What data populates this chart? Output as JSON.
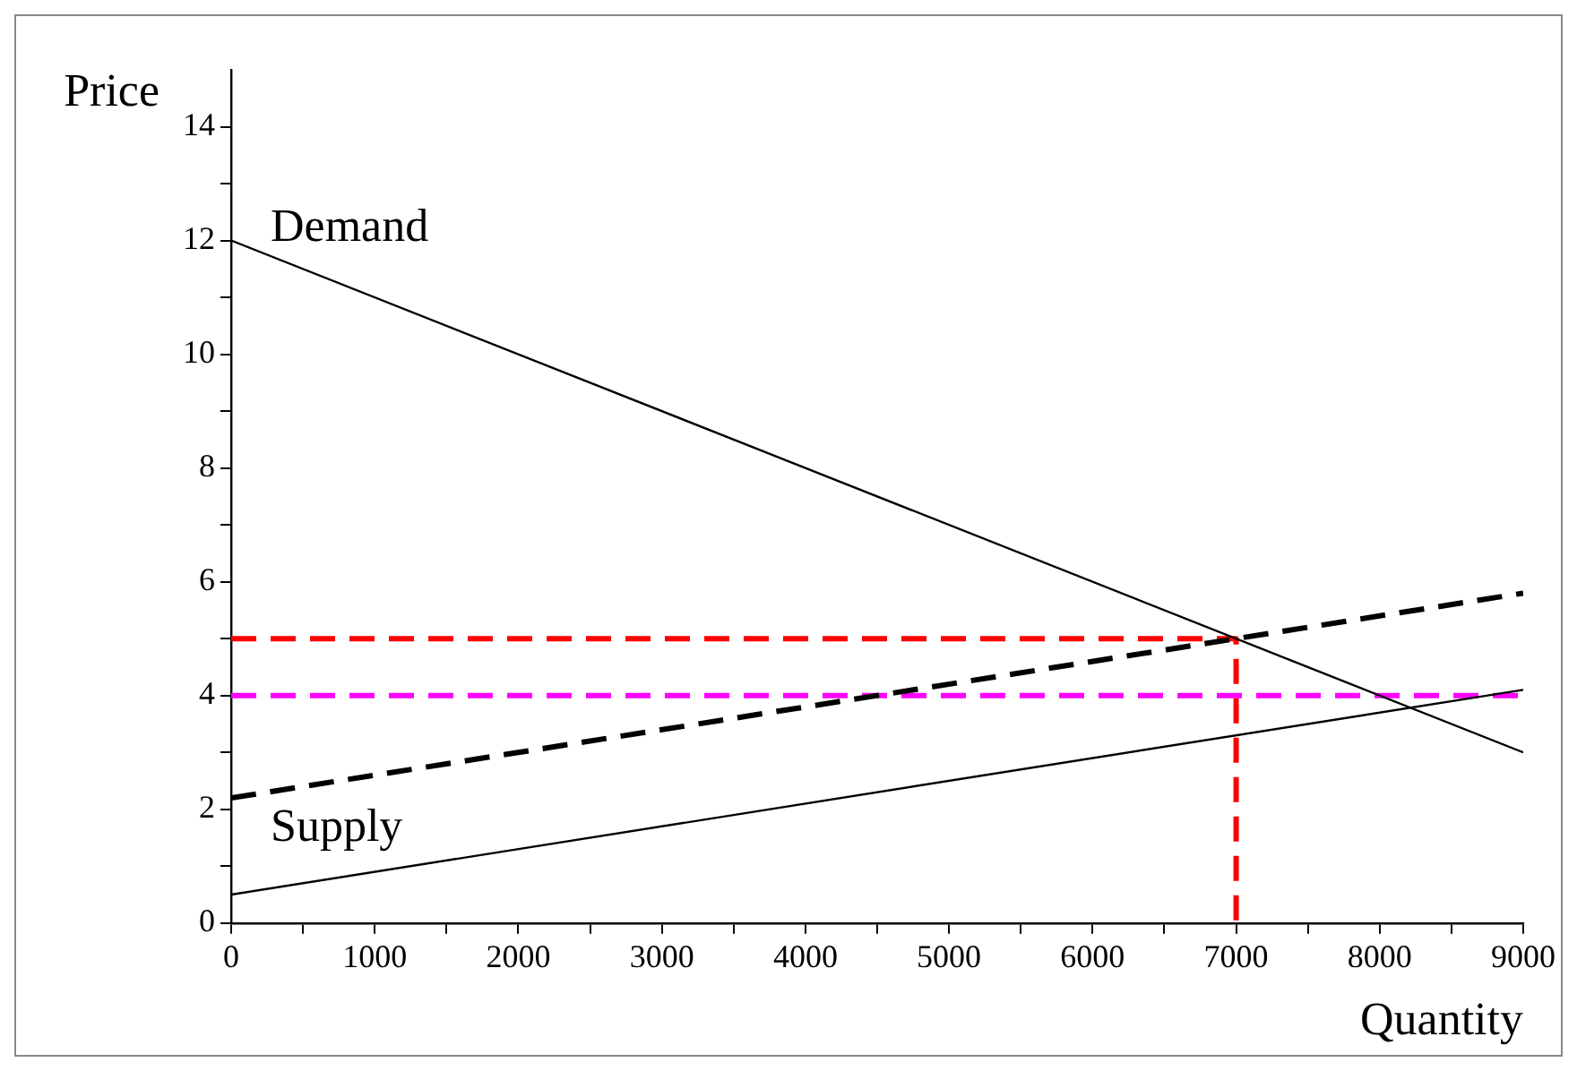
{
  "chart_data": {
    "type": "line",
    "xlabel": "Quantity",
    "ylabel": "Price",
    "xlim": [
      0,
      9000
    ],
    "ylim": [
      0,
      15
    ],
    "xticks": [
      0,
      {
        "value": 500,
        "label": null
      },
      1000,
      {
        "value": 1500,
        "label": null
      },
      2000,
      {
        "value": 2500,
        "label": null
      },
      3000,
      {
        "value": 3500,
        "label": null
      },
      4000,
      {
        "value": 4500,
        "label": null
      },
      5000,
      {
        "value": 5500,
        "label": null
      },
      6000,
      {
        "value": 6500,
        "label": null
      },
      7000,
      {
        "value": 7500,
        "label": null
      },
      8000,
      {
        "value": 8500,
        "label": null
      },
      9000
    ],
    "yticks": [
      0,
      {
        "value": 1,
        "label": null
      },
      2,
      {
        "value": 3,
        "label": null
      },
      4,
      {
        "value": 5,
        "label": null
      },
      6,
      {
        "value": 7,
        "label": null
      },
      8,
      {
        "value": 9,
        "label": null
      },
      10,
      {
        "value": 11,
        "label": null
      },
      12,
      {
        "value": 13,
        "label": null
      },
      14
    ],
    "marker": "none",
    "legend": "left",
    "series": [
      {
        "name": "Demand",
        "color": "#000000",
        "x": [
          0,
          9000
        ],
        "values": [
          12,
          3
        ],
        "line_style": "solid"
      },
      {
        "name": "Supply",
        "color": "#000000",
        "x": [
          0,
          9000
        ],
        "values": [
          0.5,
          4.1
        ],
        "line_style": "solid"
      },
      {
        "color": "#000000",
        "x": [
          0,
          9000
        ],
        "values": [
          2.2,
          5.8
        ],
        "line_style": "dashed"
      },
      {
        "color": "#ff0000",
        "x": [
          0,
          7000,
          7000
        ],
        "values": [
          5,
          5,
          0
        ],
        "line_style": "dashed"
      },
      {
        "color": "#ff00ff",
        "x": [
          0,
          9000
        ],
        "values": [
          4,
          4
        ],
        "line_style": "dashed"
      }
    ]
  }
}
